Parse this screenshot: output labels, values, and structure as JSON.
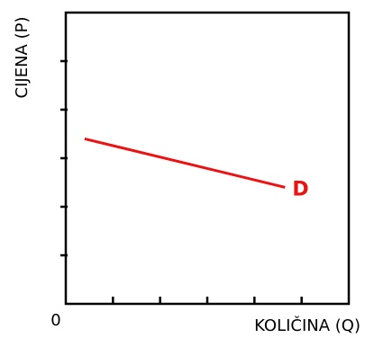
{
  "chart_data": {
    "type": "line",
    "xlabel": "KOLIČINA (Q)",
    "ylabel": "CIJENA (P)",
    "origin_label": "0",
    "xlim": [
      0,
      6
    ],
    "ylim": [
      0,
      6
    ],
    "x_ticks": [
      1,
      2,
      3,
      4,
      5
    ],
    "y_ticks": [
      1,
      2,
      3,
      4,
      5
    ],
    "grid": false,
    "legend": "none",
    "series": [
      {
        "name": "D",
        "color": "#ee1111",
        "points": [
          {
            "x": 0.4,
            "y": 3.4
          },
          {
            "x": 4.65,
            "y": 2.4
          }
        ]
      }
    ]
  }
}
